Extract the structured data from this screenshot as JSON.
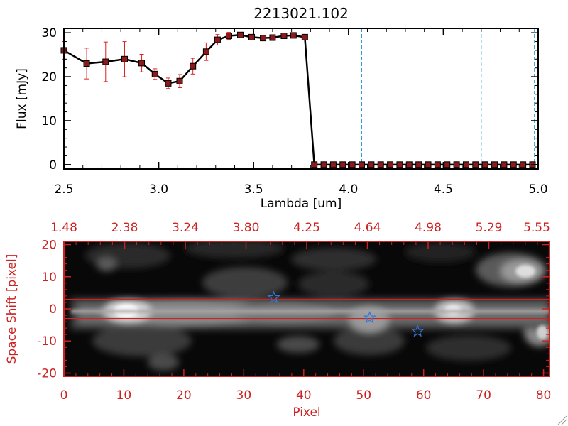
{
  "chart_data": [
    {
      "type": "line",
      "title": "2213021.102",
      "xlabel": "Lambda [um]",
      "ylabel": "Flux [mJy]",
      "xlim": [
        2.5,
        5.0
      ],
      "ylim": [
        -1,
        31
      ],
      "x_ticks": [
        "2.5",
        "3.0",
        "3.5",
        "4.0",
        "4.5",
        "5.0"
      ],
      "y_ticks": [
        "0",
        "10",
        "20",
        "30"
      ],
      "series": [
        {
          "x": [
            2.5,
            2.62,
            2.72,
            2.82,
            2.91,
            2.98,
            3.05,
            3.11,
            3.18,
            3.25,
            3.31,
            3.37,
            3.43,
            3.49,
            3.55,
            3.6,
            3.66,
            3.71,
            3.77,
            3.82,
            3.87,
            3.92,
            3.97,
            4.02,
            4.07,
            4.12,
            4.17,
            4.22,
            4.27,
            4.32,
            4.37,
            4.42,
            4.47,
            4.52,
            4.57,
            4.62,
            4.67,
            4.72,
            4.77,
            4.82,
            4.87,
            4.92,
            4.97
          ],
          "y": [
            26,
            23,
            23.4,
            24,
            23.1,
            20.6,
            18.5,
            19,
            22.4,
            25.7,
            28.4,
            29.3,
            29.5,
            29,
            28.8,
            28.9,
            29.3,
            29.4,
            29,
            0,
            0,
            0,
            0,
            0,
            0,
            0,
            0,
            0,
            0,
            0,
            0,
            0,
            0,
            0,
            0,
            0,
            0,
            0,
            0,
            0,
            0,
            0,
            0
          ],
          "yerr": [
            2,
            3.5,
            4.5,
            4,
            2,
            1.2,
            1.2,
            1.5,
            1.8,
            2,
            1.2,
            0.8,
            0.6,
            0.6,
            0.5,
            0.5,
            0.5,
            0.5,
            0.6,
            0,
            0,
            0,
            0,
            0,
            0,
            0,
            0,
            0,
            0,
            0,
            0,
            0,
            0,
            0,
            0,
            0,
            0,
            0,
            0,
            0,
            0,
            0,
            0
          ]
        }
      ],
      "vlines": [
        4.07,
        4.7,
        4.98
      ],
      "grid": false,
      "colors": {
        "line": "#000000",
        "marker": "#8b1a1a",
        "errorbar": "#dd2222",
        "vline": "#3399cc"
      }
    },
    {
      "type": "heatmap",
      "xlabel": "Pixel",
      "ylabel": "Space Shift [pixel]",
      "xlim": [
        0,
        81
      ],
      "ylim": [
        -21,
        21
      ],
      "x_ticks": [
        "0",
        "10",
        "20",
        "30",
        "40",
        "50",
        "60",
        "70",
        "80"
      ],
      "y_ticks": [
        "20",
        "10",
        "0",
        "-10",
        "-20"
      ],
      "top_ticks": [
        "1.48",
        "2.38",
        "3.24",
        "3.80",
        "4.25",
        "4.64",
        "4.98",
        "5.29",
        "5.55"
      ],
      "aperture": [
        -3,
        3
      ],
      "markers": [
        {
          "x": 35,
          "y": 3.5
        },
        {
          "x": 51,
          "y": -2.8
        },
        {
          "x": 59,
          "y": -7
        }
      ],
      "colors": {
        "frame": "#cc2222",
        "star": "#3377dd",
        "aperture": "#cc2222"
      }
    }
  ]
}
